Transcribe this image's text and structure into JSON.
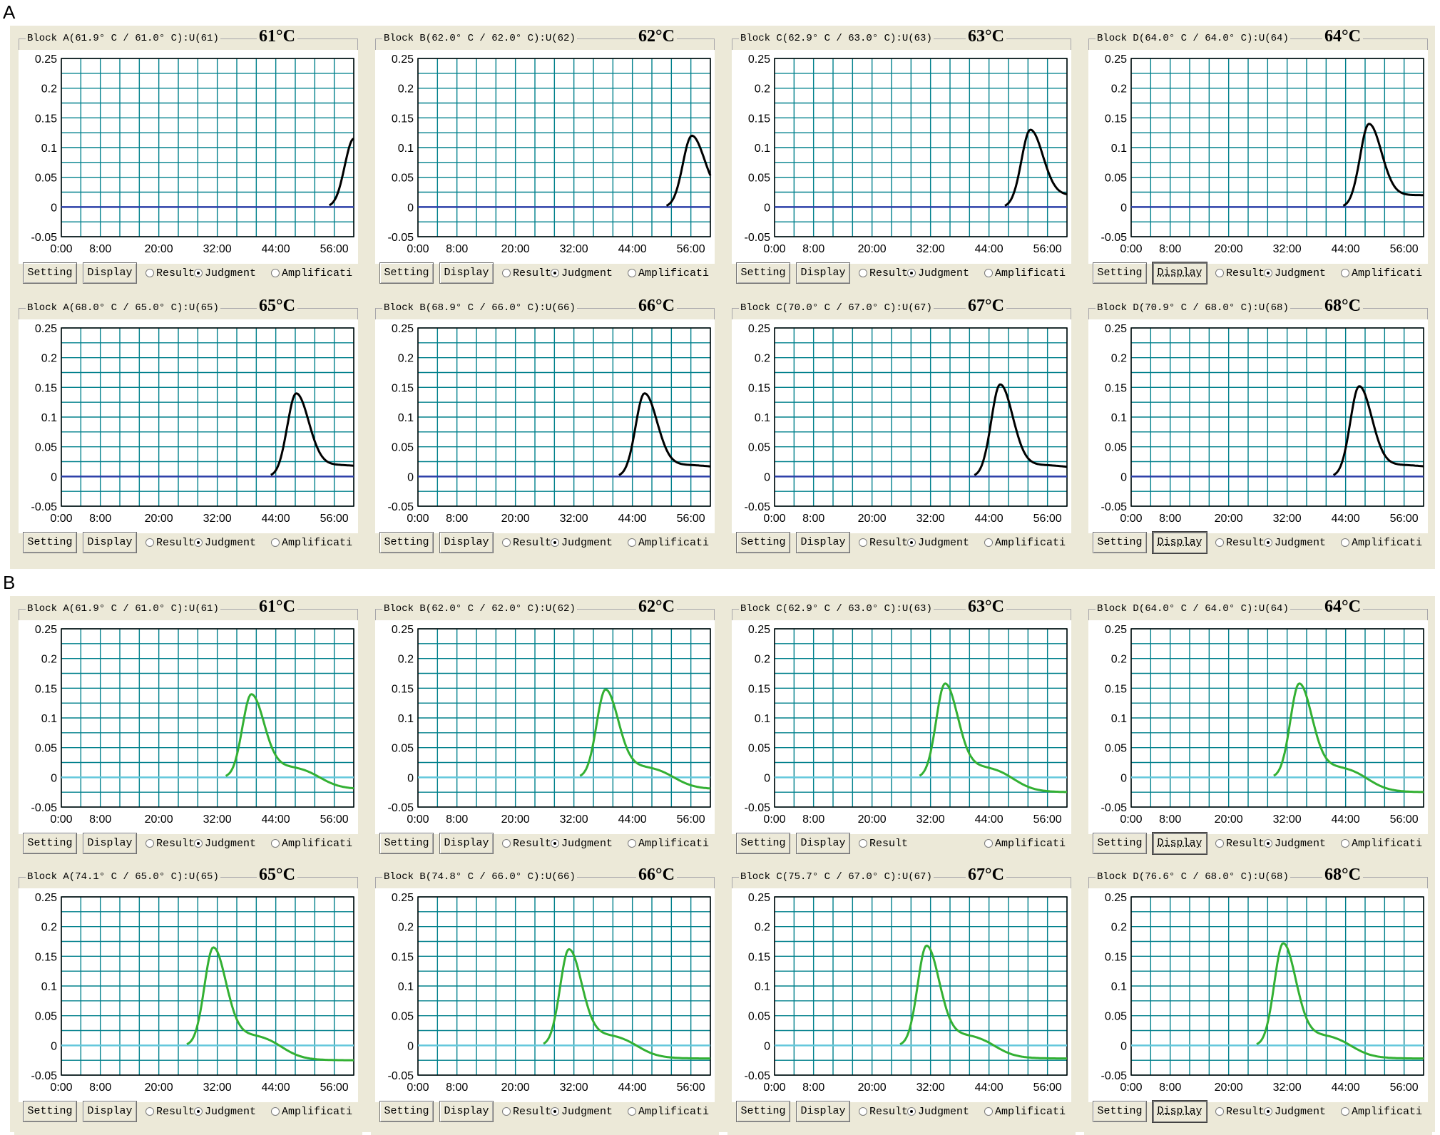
{
  "section_labels": [
    "A",
    "B"
  ],
  "axis": {
    "y_ticks": [
      "0.25",
      "0.2",
      "0.15",
      "0.1",
      "0.05",
      "0",
      "-0.05"
    ],
    "x_ticks": [
      "0:00",
      "8:00",
      "20:00",
      "32:00",
      "44:00",
      "56:00"
    ],
    "ylim": [
      -0.05,
      0.25
    ],
    "xlim_minutes": [
      0,
      60
    ]
  },
  "controls": {
    "setting": "Setting",
    "display": "Display",
    "result": "Result",
    "judgment": "Judgment",
    "amplification": "Amplificati"
  },
  "colors": {
    "plot_grid": "#00808c",
    "baseline_A": "#2b3fa8",
    "curve_A": "#000000",
    "baseline_B": "#64c8dc",
    "curve_B": "#33b033",
    "window_bg": "#ece9d8"
  },
  "sections": [
    {
      "label": "A",
      "panels": [
        {
          "block": "Block A(61.9° C / 61.0° C):U(61)",
          "temp": "61°C",
          "peak_x": 60,
          "peak_y": 0.115,
          "tail": 0.11,
          "judgment_shown": true,
          "display_pressed": false
        },
        {
          "block": "Block B(62.0° C / 62.0° C):U(62)",
          "temp": "62°C",
          "peak_x": 56.2,
          "peak_y": 0.12,
          "tail": 0.045,
          "judgment_shown": true,
          "display_pressed": false
        },
        {
          "block": "Block C(62.9° C / 63.0° C):U(63)",
          "temp": "63°C",
          "peak_x": 52.5,
          "peak_y": 0.13,
          "tail": 0.02,
          "judgment_shown": true,
          "display_pressed": false
        },
        {
          "block": "Block D(64.0° C / 64.0° C):U(64)",
          "temp": "64°C",
          "peak_x": 48.8,
          "peak_y": 0.14,
          "tail": 0.02,
          "judgment_shown": true,
          "display_pressed": true
        },
        {
          "block": "Block A(68.0° C / 65.0° C):U(65)",
          "temp": "65°C",
          "peak_x": 48.2,
          "peak_y": 0.14,
          "tail": 0.013,
          "judgment_shown": true,
          "display_pressed": false
        },
        {
          "block": "Block B(68.9° C / 66.0° C):U(66)",
          "temp": "66°C",
          "peak_x": 46.5,
          "peak_y": 0.14,
          "tail": 0.013,
          "judgment_shown": true,
          "display_pressed": false
        },
        {
          "block": "Block C(70.0° C / 67.0° C):U(67)",
          "temp": "67°C",
          "peak_x": 46.3,
          "peak_y": 0.155,
          "tail": 0.012,
          "judgment_shown": true,
          "display_pressed": false
        },
        {
          "block": "Block D(70.9° C / 68.0° C):U(68)",
          "temp": "68°C",
          "peak_x": 46.8,
          "peak_y": 0.152,
          "tail": 0.013,
          "judgment_shown": true,
          "display_pressed": true
        }
      ]
    },
    {
      "label": "B",
      "panels": [
        {
          "block": "Block A(61.9° C / 61.0° C):U(61)",
          "temp": "61°C",
          "peak_x": 39.0,
          "peak_y": 0.14,
          "tail": -0.02,
          "judgment_shown": true,
          "display_pressed": false
        },
        {
          "block": "Block B(62.0° C / 62.0° C):U(62)",
          "temp": "62°C",
          "peak_x": 38.5,
          "peak_y": 0.148,
          "tail": -0.02,
          "judgment_shown": true,
          "display_pressed": false
        },
        {
          "block": "Block C(62.9° C / 63.0° C):U(63)",
          "temp": "63°C",
          "peak_x": 35.0,
          "peak_y": 0.158,
          "tail": -0.025,
          "judgment_shown": false,
          "display_pressed": false
        },
        {
          "block": "Block D(64.0° C / 64.0° C):U(64)",
          "temp": "64°C",
          "peak_x": 34.5,
          "peak_y": 0.158,
          "tail": -0.025,
          "judgment_shown": true,
          "display_pressed": true
        },
        {
          "block": "Block A(74.1° C / 65.0° C):U(65)",
          "temp": "65°C",
          "peak_x": 31.2,
          "peak_y": 0.165,
          "tail": -0.025,
          "judgment_shown": true,
          "display_pressed": false
        },
        {
          "block": "Block B(74.8° C / 66.0° C):U(66)",
          "temp": "66°C",
          "peak_x": 31.0,
          "peak_y": 0.162,
          "tail": -0.022,
          "judgment_shown": true,
          "display_pressed": false
        },
        {
          "block": "Block C(75.7° C / 67.0° C):U(67)",
          "temp": "67°C",
          "peak_x": 31.2,
          "peak_y": 0.168,
          "tail": -0.022,
          "judgment_shown": true,
          "display_pressed": false
        },
        {
          "block": "Block D(76.6° C / 68.0° C):U(68)",
          "temp": "68°C",
          "peak_x": 31.2,
          "peak_y": 0.172,
          "tail": -0.022,
          "judgment_shown": true,
          "display_pressed": true
        }
      ]
    }
  ]
}
